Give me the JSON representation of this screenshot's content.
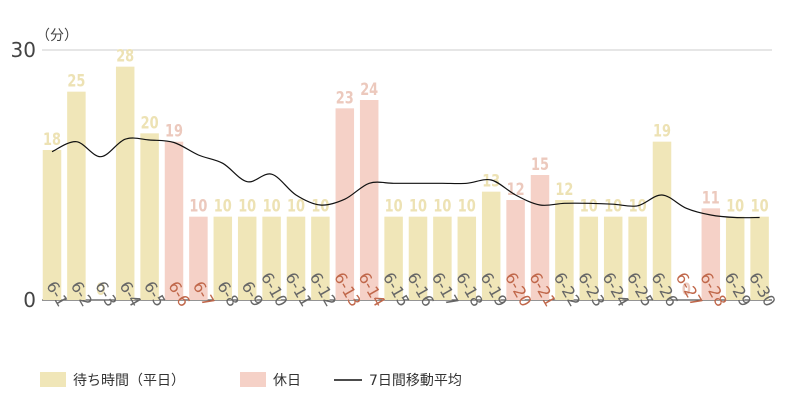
{
  "chart_data": {
    "type": "bar",
    "unit_label": "（分）",
    "ylim": [
      0,
      30
    ],
    "yticks": [
      0,
      30
    ],
    "grid": true,
    "categories": [
      "6-1",
      "6-2",
      "6-3",
      "6-4",
      "6-5",
      "6-6",
      "6-7",
      "6-8",
      "6-9",
      "6-10",
      "6-11",
      "6-12",
      "6-13",
      "6-14",
      "6-15",
      "6-16",
      "6-17",
      "6-18",
      "6-19",
      "6-20",
      "6-21",
      "6-22",
      "6-23",
      "6-24",
      "6-25",
      "6-26",
      "6-27",
      "6-28",
      "6-29",
      "6-30"
    ],
    "values": [
      18,
      25,
      0,
      28,
      20,
      19,
      10,
      10,
      10,
      10,
      10,
      10,
      23,
      24,
      10,
      10,
      10,
      10,
      13,
      12,
      15,
      12,
      10,
      10,
      10,
      19,
      0,
      11,
      10,
      10
    ],
    "holiday": [
      false,
      false,
      false,
      false,
      false,
      true,
      true,
      false,
      false,
      false,
      false,
      false,
      true,
      true,
      false,
      false,
      false,
      false,
      false,
      true,
      true,
      false,
      false,
      false,
      false,
      false,
      true,
      true,
      false,
      false
    ],
    "moving_average": [
      17.8,
      19.0,
      17.2,
      19.3,
      19.2,
      18.9,
      17.4,
      16.4,
      14.2,
      15.1,
      12.6,
      11.4,
      12.1,
      14.0,
      14.0,
      14.0,
      14.0,
      14.0,
      14.4,
      12.6,
      11.4,
      11.6,
      11.6,
      11.5,
      11.3,
      12.6,
      11.0,
      10.2,
      9.9,
      9.9
    ],
    "series": [
      {
        "name": "待ち時間（平日）",
        "color": "#f0e6b8"
      },
      {
        "name": "休日",
        "color": "#f5d1c7"
      },
      {
        "name": "7日間移動平均",
        "color": "#111111"
      }
    ],
    "label_colors": {
      "weekday_value": "#ede2b4",
      "holiday_value": "#ecc9bd",
      "weekday_tick": "#666666",
      "holiday_tick": "#c0674a",
      "axis": "#444444"
    },
    "legend_position": "bottom-left"
  }
}
